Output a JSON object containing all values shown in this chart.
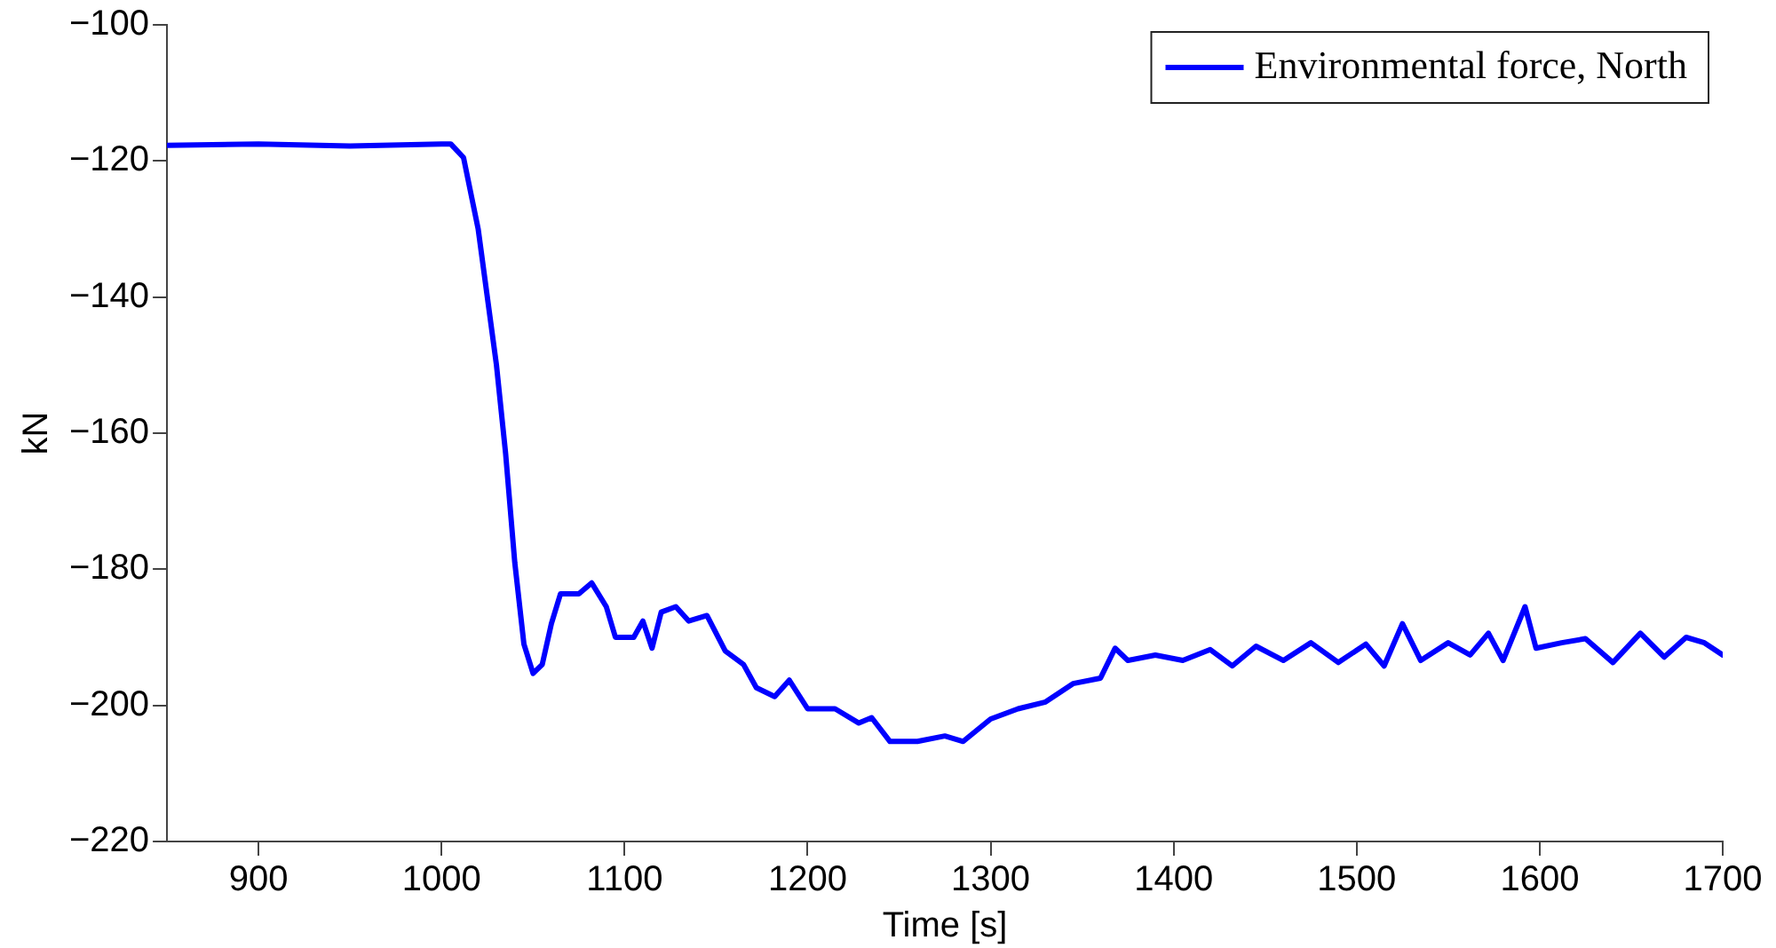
{
  "chart_data": {
    "type": "line",
    "xlabel": "Time [s]",
    "ylabel": "kN",
    "xlim": [
      850,
      1700
    ],
    "xticks": [
      900,
      1000,
      1100,
      1200,
      1300,
      1400,
      1500,
      1600,
      1700
    ],
    "ylim": [
      -220,
      -100
    ],
    "yticks": [
      -220,
      -200,
      -180,
      -160,
      -140,
      -120,
      -100
    ],
    "grid": false,
    "legend": "top right",
    "marker": "none",
    "line_style": "solid",
    "series": [
      {
        "name": "Environmental force, North",
        "color": "#0000ff",
        "x": [
          850,
          900,
          950,
          1000,
          1005,
          1012,
          1020,
          1030,
          1035,
          1040,
          1045,
          1050,
          1055,
          1060,
          1065,
          1075,
          1082,
          1090,
          1095,
          1105,
          1110,
          1115,
          1120,
          1128,
          1135,
          1145,
          1155,
          1165,
          1172,
          1182,
          1190,
          1200,
          1215,
          1228,
          1235,
          1245,
          1260,
          1275,
          1285,
          1300,
          1315,
          1330,
          1345,
          1360,
          1368,
          1375,
          1390,
          1405,
          1420,
          1432,
          1445,
          1460,
          1475,
          1490,
          1505,
          1515,
          1525,
          1535,
          1550,
          1562,
          1572,
          1580,
          1592,
          1598,
          1612,
          1625,
          1640,
          1655,
          1668,
          1680,
          1690,
          1700
        ],
        "values": [
          -117.7,
          -117.5,
          -117.8,
          -117.5,
          -117.5,
          -119.5,
          -130,
          -150,
          -163,
          -179,
          -191,
          -195.3,
          -194,
          -188,
          -183.6,
          -183.6,
          -182,
          -185.5,
          -190,
          -190,
          -187.6,
          -191.6,
          -186.3,
          -185.5,
          -187.6,
          -186.8,
          -192,
          -194,
          -197.4,
          -198.7,
          -196.3,
          -200.5,
          -200.5,
          -202.6,
          -201.8,
          -205.3,
          -205.3,
          -204.5,
          -205.3,
          -202,
          -200.5,
          -199.5,
          -196.8,
          -196,
          -191.6,
          -193.4,
          -192.6,
          -193.4,
          -191.8,
          -194.2,
          -191.3,
          -193.4,
          -190.8,
          -193.7,
          -191,
          -194.2,
          -188,
          -193.4,
          -190.8,
          -192.6,
          -189.4,
          -193.4,
          -185.5,
          -191.6,
          -190.8,
          -190.2,
          -193.7,
          -189.4,
          -192.9,
          -190,
          -190.8,
          -192.6
        ]
      }
    ]
  }
}
